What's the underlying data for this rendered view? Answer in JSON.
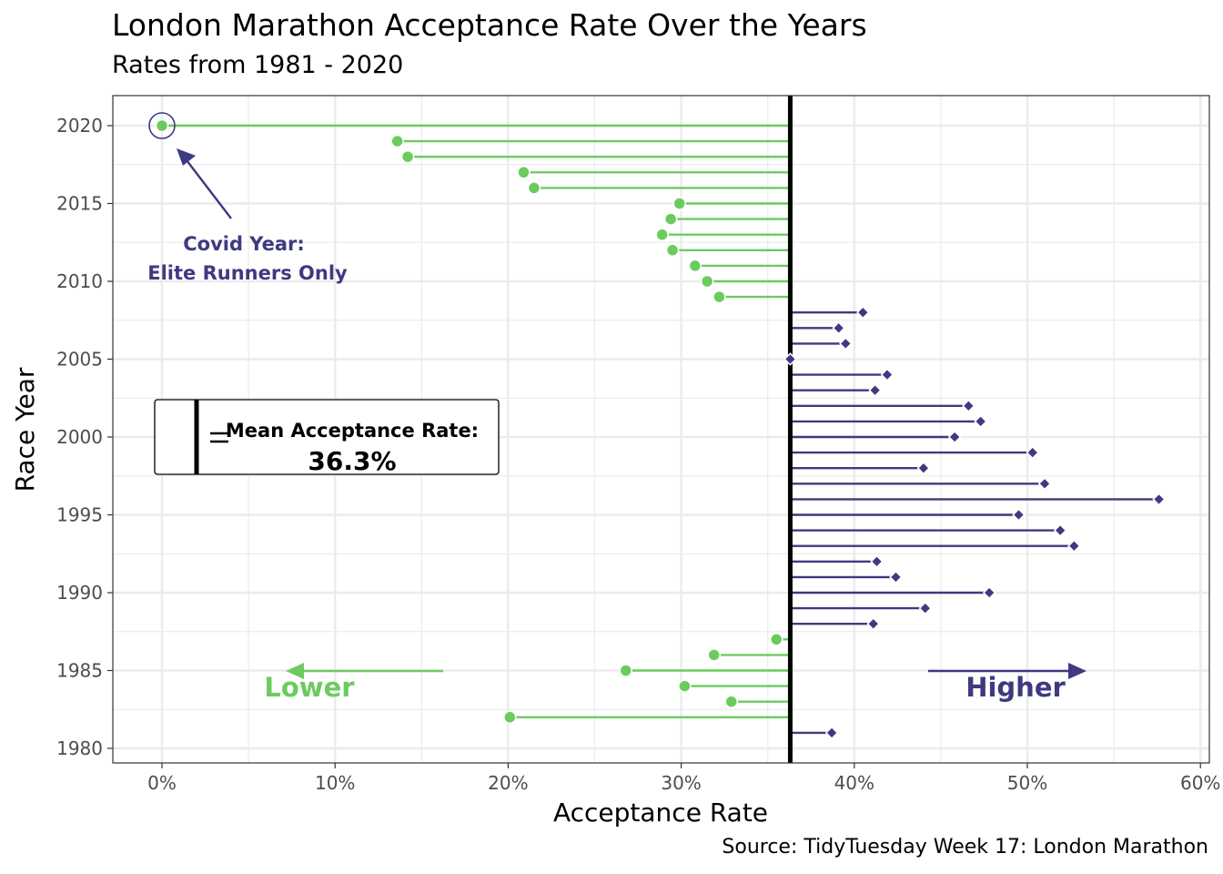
{
  "title": "London Marathon Acceptance Rate Over the Years",
  "subtitle": "Rates from 1981 - 2020",
  "caption": "Source: TidyTuesday Week 17: London Marathon",
  "colors": {
    "lower": "#6CCB5F",
    "higher": "#3E3A80",
    "mean_line": "#000000",
    "grid": "#EBEBEB"
  },
  "chart_data": {
    "type": "lollipop",
    "orientation": "horizontal",
    "xlabel": "Acceptance Rate",
    "ylabel": "Race Year",
    "xlim": [
      0,
      60
    ],
    "ylim": [
      1980,
      2020
    ],
    "x_ticks": [
      0,
      10,
      20,
      30,
      40,
      50,
      60
    ],
    "x_tick_labels": [
      "0%",
      "10%",
      "20%",
      "30%",
      "40%",
      "50%",
      "60%"
    ],
    "y_ticks": [
      1980,
      1985,
      1990,
      1995,
      2000,
      2005,
      2010,
      2015,
      2020
    ],
    "y_tick_labels": [
      "1980",
      "1985",
      "1990",
      "1995",
      "2000",
      "2005",
      "2010",
      "2015",
      "2020"
    ],
    "mean": 36.3,
    "grid": true,
    "points": [
      {
        "year": 1981,
        "rate": 38.7
      },
      {
        "year": 1982,
        "rate": 20.1
      },
      {
        "year": 1983,
        "rate": 32.9
      },
      {
        "year": 1984,
        "rate": 30.2
      },
      {
        "year": 1985,
        "rate": 26.8
      },
      {
        "year": 1986,
        "rate": 31.9
      },
      {
        "year": 1987,
        "rate": 35.5
      },
      {
        "year": 1988,
        "rate": 41.1
      },
      {
        "year": 1989,
        "rate": 44.1
      },
      {
        "year": 1990,
        "rate": 47.8
      },
      {
        "year": 1991,
        "rate": 42.4
      },
      {
        "year": 1992,
        "rate": 41.3
      },
      {
        "year": 1993,
        "rate": 52.7
      },
      {
        "year": 1994,
        "rate": 51.9
      },
      {
        "year": 1995,
        "rate": 49.5
      },
      {
        "year": 1996,
        "rate": 57.6
      },
      {
        "year": 1997,
        "rate": 51.0
      },
      {
        "year": 1998,
        "rate": 44.0
      },
      {
        "year": 1999,
        "rate": 50.3
      },
      {
        "year": 2000,
        "rate": 45.8
      },
      {
        "year": 2001,
        "rate": 47.3
      },
      {
        "year": 2002,
        "rate": 46.6
      },
      {
        "year": 2003,
        "rate": 41.2
      },
      {
        "year": 2004,
        "rate": 41.9
      },
      {
        "year": 2005,
        "rate": 36.3
      },
      {
        "year": 2006,
        "rate": 39.5
      },
      {
        "year": 2007,
        "rate": 39.1
      },
      {
        "year": 2008,
        "rate": 40.5
      },
      {
        "year": 2009,
        "rate": 32.2
      },
      {
        "year": 2010,
        "rate": 31.5
      },
      {
        "year": 2011,
        "rate": 30.8
      },
      {
        "year": 2012,
        "rate": 29.5
      },
      {
        "year": 2013,
        "rate": 28.9
      },
      {
        "year": 2014,
        "rate": 29.4
      },
      {
        "year": 2015,
        "rate": 29.9
      },
      {
        "year": 2016,
        "rate": 21.5
      },
      {
        "year": 2017,
        "rate": 20.9
      },
      {
        "year": 2018,
        "rate": 14.2
      },
      {
        "year": 2019,
        "rate": 13.6
      },
      {
        "year": 2020,
        "rate": 0.0
      }
    ],
    "annotations": {
      "covid_line1": "Covid Year:",
      "covid_line2": "Elite Runners Only",
      "mean_legend_label": "Mean Acceptance Rate:",
      "mean_legend_value": "36.3%",
      "lower_label": "Lower",
      "higher_label": "Higher"
    }
  }
}
